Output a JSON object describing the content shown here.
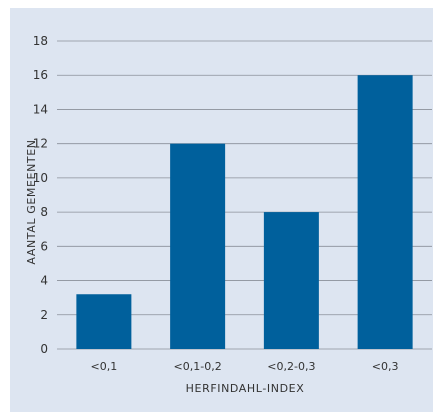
{
  "chart_data": {
    "type": "bar",
    "categories": [
      "<0,1",
      "<0,1-0,2",
      "<0,2-0,3",
      "<0,3"
    ],
    "values": [
      3.2,
      12,
      8,
      16
    ],
    "xlabel": "HERFINDAHL-INDEX",
    "ylabel": "AANTAL GEMEENTEN",
    "ylim": [
      0,
      18
    ],
    "yticks": [
      "0",
      "2",
      "4",
      "6",
      "8",
      "10",
      "12",
      "14",
      "16",
      "18"
    ],
    "grid": true,
    "bar_color": "#00609c",
    "background_color": "#dde5f1",
    "grid_color": "#8a8f99"
  }
}
